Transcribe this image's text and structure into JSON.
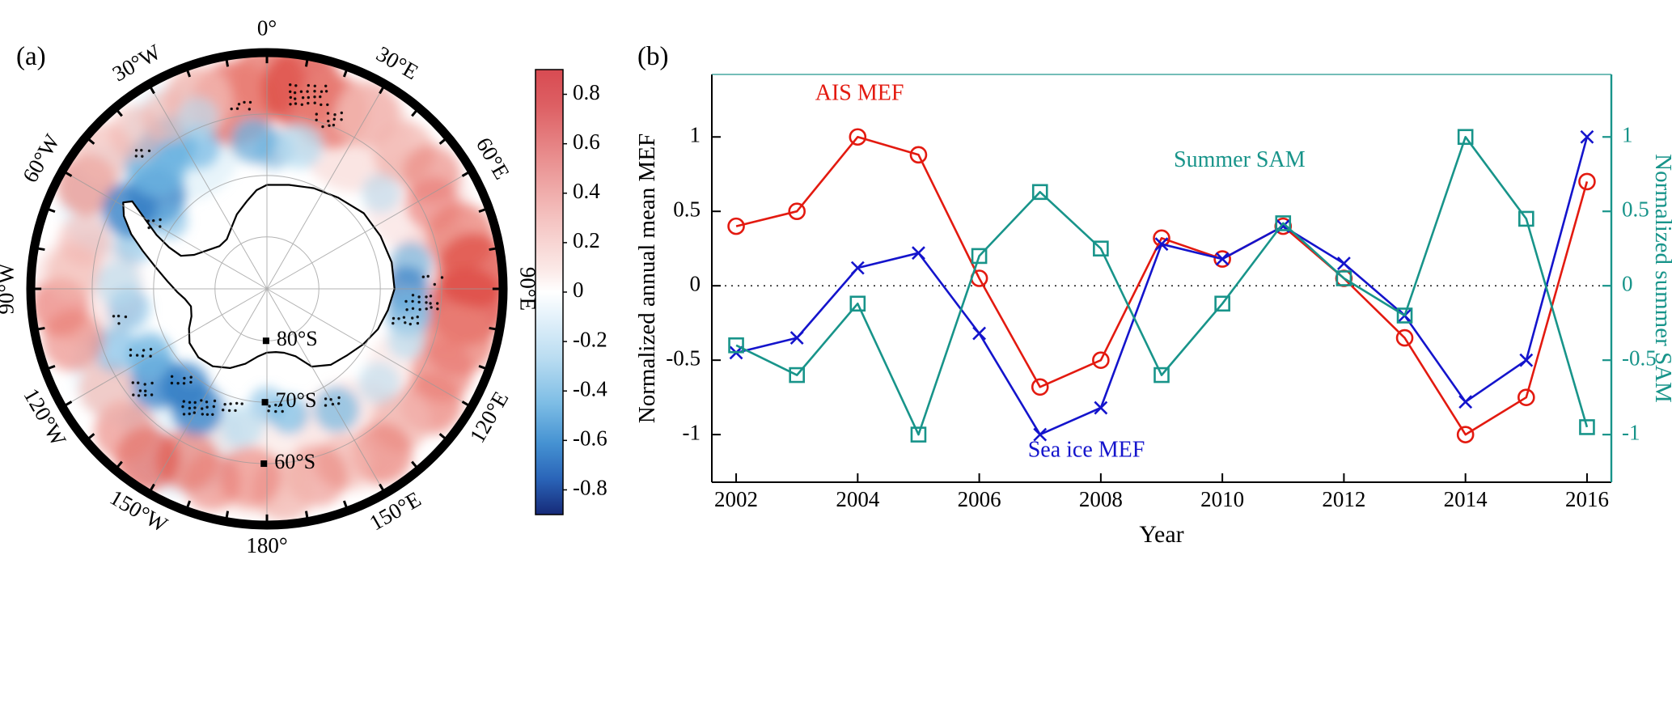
{
  "figure": {
    "panel_a": {
      "label": "(a)",
      "longitude_labels": [
        "0°",
        "30°E",
        "60°E",
        "90°E",
        "120°E",
        "150°E",
        "180°",
        "150°W",
        "120°W",
        "90°W",
        "60°W",
        "30°W"
      ],
      "latitude_labels": [
        "80°S",
        "70°S",
        "60°S"
      ],
      "colorbar": {
        "ticks": [
          0.8,
          0.6,
          0.4,
          0.2,
          0,
          -0.2,
          -0.4,
          -0.6,
          -0.8
        ],
        "max_color": "#d84b52",
        "mid_color": "#ffffff",
        "min_color": "#162a78"
      }
    },
    "panel_b": {
      "label": "(b)"
    }
  },
  "chart_data": {
    "type": "line",
    "x": [
      2002,
      2003,
      2004,
      2005,
      2006,
      2007,
      2008,
      2009,
      2010,
      2011,
      2012,
      2013,
      2014,
      2015,
      2016
    ],
    "series": [
      {
        "name": "AIS MEF",
        "color": "#e31a10",
        "marker": "circle",
        "axis": "left",
        "values": [
          0.4,
          0.5,
          1.0,
          0.88,
          0.05,
          -0.68,
          -0.5,
          0.32,
          0.18,
          0.4,
          0.05,
          -0.35,
          -1.0,
          -0.75,
          0.7
        ]
      },
      {
        "name": "Sea ice MEF",
        "color": "#1414cc",
        "marker": "x",
        "axis": "left",
        "values": [
          -0.45,
          -0.35,
          0.12,
          0.22,
          -0.32,
          -1.0,
          -0.82,
          0.28,
          0.18,
          0.4,
          0.15,
          -0.2,
          -0.78,
          -0.5,
          1.0
        ]
      },
      {
        "name": "Summer SAM",
        "color": "#18948a",
        "marker": "square",
        "axis": "right",
        "values": [
          -0.4,
          -0.6,
          -0.12,
          -1.0,
          0.2,
          0.63,
          0.25,
          -0.6,
          -0.12,
          0.42,
          0.05,
          -0.2,
          1.0,
          0.45,
          -0.95
        ]
      }
    ],
    "xlabel": "Year",
    "ylabel_left": "Normalized annual mean MEF",
    "ylabel_right": "Normalized summer SAM",
    "xticks": [
      2002,
      2004,
      2006,
      2008,
      2010,
      2012,
      2014,
      2016
    ],
    "yticks_left": [
      1,
      0.5,
      0,
      -0.5,
      -1
    ],
    "yticks_right": [
      1,
      0.5,
      0,
      -0.5,
      -1
    ],
    "xlim": [
      2001.6,
      2016.4
    ],
    "ylim": [
      -1.32,
      1.42
    ],
    "zero_line_y": 0,
    "grid": false,
    "axis_color_right": "#18948a",
    "legend_position": "in-plot annotations",
    "annotations": [
      {
        "text": "AIS MEF",
        "x": 2003.3,
        "y": 1.25,
        "series": "AIS MEF"
      },
      {
        "text": "Summer SAM",
        "x": 2009.2,
        "y": 0.8,
        "series": "Summer SAM"
      },
      {
        "text": "Sea ice MEF",
        "x": 2006.8,
        "y": -1.15,
        "series": "Sea ice MEF"
      }
    ]
  }
}
